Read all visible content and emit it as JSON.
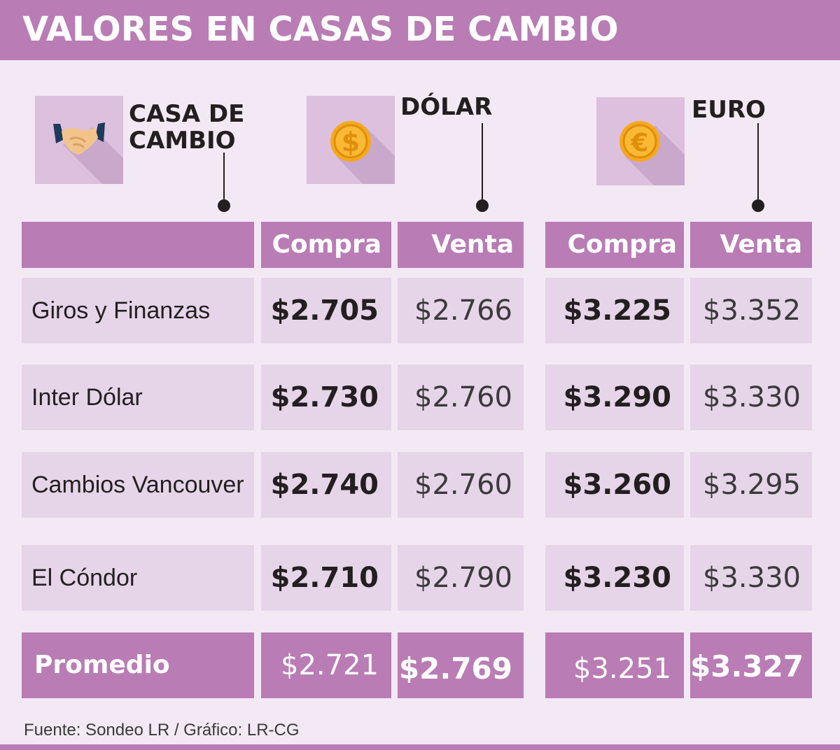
{
  "title": "VALORES EN CASAS DE CAMBIO",
  "headers": {
    "casa": [
      "CASA DE",
      "CAMBIO"
    ],
    "dolar": "DÓLAR",
    "euro": "EURO"
  },
  "icons": {
    "casa": "handshake-icon",
    "dolar": "dollar-coin-icon",
    "euro": "euro-coin-icon"
  },
  "colors": {
    "header": "#b97cb5",
    "background": "#f3e9f4",
    "row": "#e6d5e8",
    "icon_box": "#dcc0de",
    "coin": "#f6a91b"
  },
  "chart_data": {
    "type": "table",
    "title": "VALORES EN CASAS DE CAMBIO",
    "column_headers": [
      "Compra",
      "Venta",
      "Compra",
      "Venta"
    ],
    "column_groups": [
      "DÓLAR",
      "DÓLAR",
      "EURO",
      "EURO"
    ],
    "rows": [
      {
        "name": "Giros y Finanzas",
        "values": [
          "$2.705",
          "$2.766",
          "$3.225",
          "$3.352"
        ]
      },
      {
        "name": "Inter Dólar",
        "values": [
          "$2.730",
          "$2.760",
          "$3.290",
          "$3.330"
        ]
      },
      {
        "name": "Cambios Vancouver",
        "values": [
          "$2.740",
          "$2.760",
          "$3.260",
          "$3.295"
        ]
      },
      {
        "name": "El Cóndor",
        "values": [
          "$2.710",
          "$2.790",
          "$3.230",
          "$3.330"
        ]
      }
    ],
    "average": {
      "name": "Promedio",
      "values": [
        "$2.721",
        "$2.769",
        "$3.251",
        "$3.327"
      ]
    }
  },
  "source": "Fuente: Sondeo LR / Gráfico: LR-CG"
}
